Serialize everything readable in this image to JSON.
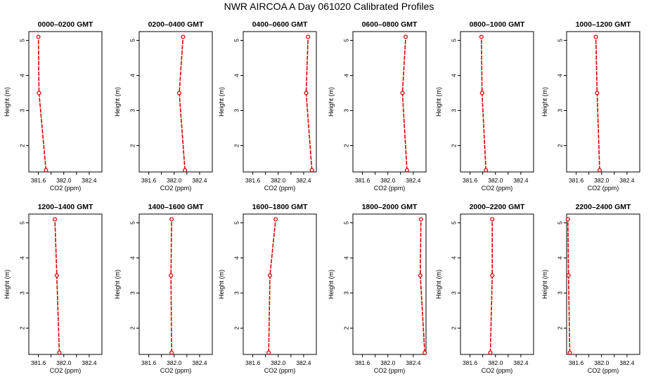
{
  "figure": {
    "title": "NWR AIRCOA A  Day 061020  Calibrated Profiles",
    "colors": {
      "series": "#dd0000",
      "axis": "#000000",
      "background": "#ffffff"
    }
  },
  "chart_data": [
    {
      "type": "line",
      "title": "0000–0200 GMT",
      "xlabel": "CO2 (ppm)",
      "ylabel": "Height (m)",
      "xticks": [
        "381.6",
        "382.0",
        "382.4"
      ],
      "yticks": [
        "2",
        "3",
        "4",
        "5"
      ],
      "xlim": [
        381.45,
        382.6
      ],
      "ylim": [
        1.25,
        5.25
      ],
      "grid": false,
      "points": [
        {
          "x": 381.72,
          "y": 1.3
        },
        {
          "x": 381.61,
          "y": 3.5
        },
        {
          "x": 381.6,
          "y": 5.1
        }
      ]
    },
    {
      "type": "line",
      "title": "0200–0400 GMT",
      "xlabel": "CO2 (ppm)",
      "ylabel": "Height (m)",
      "xticks": [
        "381.6",
        "382.0",
        "382.4"
      ],
      "yticks": [
        "2",
        "3",
        "4",
        "5"
      ],
      "xlim": [
        381.45,
        382.6
      ],
      "ylim": [
        1.25,
        5.25
      ],
      "grid": false,
      "points": [
        {
          "x": 382.17,
          "y": 1.3
        },
        {
          "x": 382.08,
          "y": 3.5
        },
        {
          "x": 382.14,
          "y": 5.1
        }
      ]
    },
    {
      "type": "line",
      "title": "0400–0600 GMT",
      "xlabel": "CO2 (ppm)",
      "ylabel": "Height (m)",
      "xticks": [
        "381.6",
        "382.0",
        "382.4"
      ],
      "yticks": [
        "2",
        "3",
        "4",
        "5"
      ],
      "xlim": [
        381.45,
        382.6
      ],
      "ylim": [
        1.25,
        5.25
      ],
      "grid": false,
      "points": [
        {
          "x": 382.53,
          "y": 1.3
        },
        {
          "x": 382.44,
          "y": 3.5
        },
        {
          "x": 382.47,
          "y": 5.1
        }
      ]
    },
    {
      "type": "line",
      "title": "0600–0800 GMT",
      "xlabel": "CO2 (ppm)",
      "ylabel": "Height (m)",
      "xticks": [
        "381.6",
        "382.0",
        "382.4"
      ],
      "yticks": [
        "2",
        "3",
        "4",
        "5"
      ],
      "xlim": [
        381.45,
        382.6
      ],
      "ylim": [
        1.25,
        5.25
      ],
      "grid": false,
      "points": [
        {
          "x": 382.3,
          "y": 1.3
        },
        {
          "x": 382.23,
          "y": 3.5
        },
        {
          "x": 382.28,
          "y": 5.1
        }
      ]
    },
    {
      "type": "line",
      "title": "0800–1000 GMT",
      "xlabel": "CO2 (ppm)",
      "ylabel": "Height (m)",
      "xticks": [
        "381.6",
        "382.0",
        "382.4"
      ],
      "yticks": [
        "2",
        "3",
        "4",
        "5"
      ],
      "xlim": [
        381.45,
        382.6
      ],
      "ylim": [
        1.25,
        5.25
      ],
      "grid": false,
      "points": [
        {
          "x": 381.85,
          "y": 1.3
        },
        {
          "x": 381.79,
          "y": 3.5
        },
        {
          "x": 381.78,
          "y": 5.1
        }
      ]
    },
    {
      "type": "line",
      "title": "1000–1200 GMT",
      "xlabel": "CO2 (ppm)",
      "ylabel": "Height (m)",
      "xticks": [
        "381.6",
        "382.0",
        "382.4"
      ],
      "yticks": [
        "2",
        "3",
        "4",
        "5"
      ],
      "xlim": [
        381.45,
        382.6
      ],
      "ylim": [
        1.25,
        5.25
      ],
      "grid": false,
      "points": [
        {
          "x": 381.97,
          "y": 1.3
        },
        {
          "x": 381.93,
          "y": 3.5
        },
        {
          "x": 381.91,
          "y": 5.1
        }
      ]
    },
    {
      "type": "line",
      "title": "1200–1400 GMT",
      "xlabel": "CO2 (ppm)",
      "ylabel": "Height (m)",
      "xticks": [
        "381.6",
        "382.0",
        "382.4"
      ],
      "yticks": [
        "2",
        "3",
        "4",
        "5"
      ],
      "xlim": [
        381.45,
        382.6
      ],
      "ylim": [
        1.25,
        5.25
      ],
      "grid": false,
      "points": [
        {
          "x": 381.93,
          "y": 1.3
        },
        {
          "x": 381.89,
          "y": 3.5
        },
        {
          "x": 381.86,
          "y": 5.1
        }
      ]
    },
    {
      "type": "line",
      "title": "1400–1600 GMT",
      "xlabel": "CO2 (ppm)",
      "ylabel": "Height (m)",
      "xticks": [
        "381.6",
        "382.0",
        "382.4"
      ],
      "yticks": [
        "2",
        "3",
        "4",
        "5"
      ],
      "xlim": [
        381.45,
        382.6
      ],
      "ylim": [
        1.25,
        5.25
      ],
      "grid": false,
      "points": [
        {
          "x": 381.96,
          "y": 1.3
        },
        {
          "x": 381.95,
          "y": 3.5
        },
        {
          "x": 381.96,
          "y": 5.1
        }
      ]
    },
    {
      "type": "line",
      "title": "1600–1800 GMT",
      "xlabel": "CO2 (ppm)",
      "ylabel": "Height (m)",
      "xticks": [
        "381.6",
        "382.0",
        "382.4"
      ],
      "yticks": [
        "2",
        "3",
        "4",
        "5"
      ],
      "xlim": [
        381.45,
        382.6
      ],
      "ylim": [
        1.25,
        5.25
      ],
      "grid": false,
      "points": [
        {
          "x": 381.85,
          "y": 1.3
        },
        {
          "x": 381.87,
          "y": 3.5
        },
        {
          "x": 381.96,
          "y": 5.1
        }
      ]
    },
    {
      "type": "line",
      "title": "1800–2000 GMT",
      "xlabel": "CO2 (ppm)",
      "ylabel": "Height (m)",
      "xticks": [
        "381.6",
        "382.0",
        "382.4"
      ],
      "yticks": [
        "2",
        "3",
        "4",
        "5"
      ],
      "xlim": [
        381.45,
        382.6
      ],
      "ylim": [
        1.25,
        5.25
      ],
      "grid": false,
      "points": [
        {
          "x": 382.58,
          "y": 1.3
        },
        {
          "x": 382.51,
          "y": 3.5
        },
        {
          "x": 382.52,
          "y": 5.1
        }
      ]
    },
    {
      "type": "line",
      "title": "2000–2200 GMT",
      "xlabel": "CO2 (ppm)",
      "ylabel": "Height (m)",
      "xticks": [
        "381.6",
        "382.0",
        "382.4"
      ],
      "yticks": [
        "2",
        "3",
        "4",
        "5"
      ],
      "xlim": [
        381.45,
        382.6
      ],
      "ylim": [
        1.25,
        5.25
      ],
      "grid": false,
      "points": [
        {
          "x": 381.92,
          "y": 1.3
        },
        {
          "x": 381.95,
          "y": 3.5
        },
        {
          "x": 381.95,
          "y": 5.1
        }
      ]
    },
    {
      "type": "line",
      "title": "2200–2400 GMT",
      "xlabel": "CO2 (ppm)",
      "ylabel": "Height (m)",
      "xticks": [
        "381.6",
        "382.0",
        "382.4"
      ],
      "yticks": [
        "2",
        "3",
        "4",
        "5"
      ],
      "xlim": [
        381.45,
        382.6
      ],
      "ylim": [
        1.25,
        5.25
      ],
      "grid": false,
      "points": [
        {
          "x": 381.5,
          "y": 1.3
        },
        {
          "x": 381.48,
          "y": 3.5
        },
        {
          "x": 381.47,
          "y": 5.1
        }
      ]
    }
  ]
}
